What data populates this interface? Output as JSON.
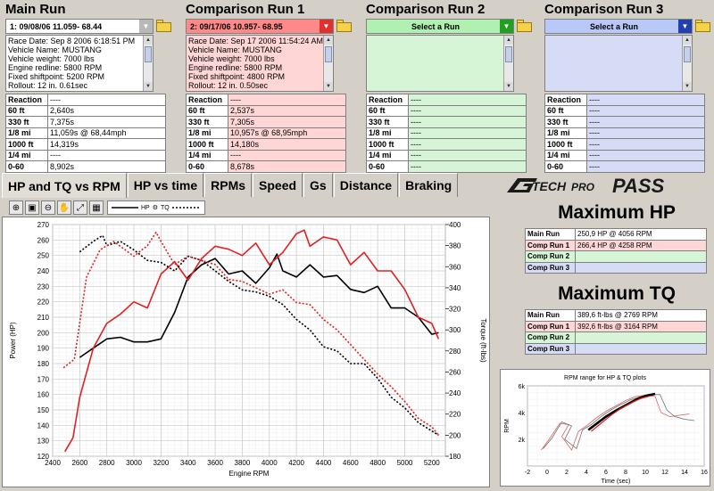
{
  "runs": [
    {
      "title": "Main Run",
      "selected": "1:   09/08/06 11.059- 68.44",
      "color": "#ffffff",
      "dd_color": "#b8b8b8",
      "header_color": "#ffffff",
      "info": [
        "Race Date: Sep 8 2006  6:18:51 PM",
        "Vehicle Name: MUSTANG",
        "Vehicle weight: 7000 lbs",
        "Engine redline: 5800 RPM",
        "Fixed shiftpoint: 5200 RPM",
        "Rollout: 12 in. 0.61sec"
      ],
      "stats": [
        [
          "Reaction",
          "----"
        ],
        [
          "60 ft",
          "2,640s"
        ],
        [
          "330 ft",
          "7,375s"
        ],
        [
          "1/8 mi",
          "11,059s @ 68,44mph"
        ],
        [
          "1000 ft",
          "14,319s"
        ],
        [
          "1/4 mi",
          "----"
        ],
        [
          "0-60",
          "8,902s"
        ]
      ]
    },
    {
      "title": "Comparison Run 1",
      "selected": "2:   09/17/06 10.957- 68.95",
      "color": "#ffd6d6",
      "dd_color": "#e03030",
      "header_color": "#ff8888",
      "info": [
        "Race Date: Sep 17 2006  11:54:24 AM",
        "Vehicle Name: MUSTANG",
        "Vehicle weight: 7000 lbs",
        "Engine redline: 5800 RPM",
        "Fixed shiftpoint: 4800 RPM",
        "Rollout: 12 in. 0.50sec"
      ],
      "stats": [
        [
          "Reaction",
          "----"
        ],
        [
          "60 ft",
          "2,537s"
        ],
        [
          "330 ft",
          "7,305s"
        ],
        [
          "1/8 mi",
          "10,957s @ 68,95mph"
        ],
        [
          "1000 ft",
          "14,180s"
        ],
        [
          "1/4 mi",
          "----"
        ],
        [
          "0-60",
          "8,678s"
        ]
      ]
    },
    {
      "title": "Comparison Run 2",
      "selected": "Select a Run",
      "color": "#d6f5d6",
      "dd_color": "#20a020",
      "header_color": "#b0f0b0",
      "info": [],
      "stats": [
        [
          "Reaction",
          "----"
        ],
        [
          "60 ft",
          "----"
        ],
        [
          "330 ft",
          "----"
        ],
        [
          "1/8 mi",
          "----"
        ],
        [
          "1000 ft",
          "----"
        ],
        [
          "1/4 mi",
          "----"
        ],
        [
          "0-60",
          "----"
        ]
      ]
    },
    {
      "title": "Comparison Run 3",
      "selected": "Select a Run",
      "color": "#d6dcf5",
      "dd_color": "#2040b0",
      "header_color": "#b8c8f8",
      "info": [],
      "stats": [
        [
          "Reaction",
          "----"
        ],
        [
          "60 ft",
          "----"
        ],
        [
          "330 ft",
          "----"
        ],
        [
          "1/8 mi",
          "----"
        ],
        [
          "1000 ft",
          "----"
        ],
        [
          "1/4 mi",
          "----"
        ],
        [
          "0-60",
          "----"
        ]
      ]
    }
  ],
  "tabs": [
    "HP and TQ vs RPM",
    "HP vs time",
    "RPMs",
    "Speed",
    "Gs",
    "Distance",
    "Braking"
  ],
  "logo": {
    "brand": "TECH",
    "sub": "PRO",
    "product": "PASS",
    "g": "G"
  },
  "legend": {
    "hp": "HP",
    "tq": "TQ"
  },
  "max_hp": {
    "title": "Maximum HP",
    "rows": [
      [
        "Main Run",
        "250,9 HP @ 4056 RPM"
      ],
      [
        "Comp Run 1",
        "266,4 HP @ 4258 RPM"
      ],
      [
        "Comp Run 2",
        ""
      ],
      [
        "Comp Run 3",
        ""
      ]
    ]
  },
  "max_tq": {
    "title": "Maximum TQ",
    "rows": [
      [
        "Main Run",
        "389,6 ft-lbs @ 2769 RPM"
      ],
      [
        "Comp Run 1",
        "392,6 ft-lbs @ 3164 RPM"
      ],
      [
        "Comp Run 2",
        ""
      ],
      [
        "Comp Run 3",
        ""
      ]
    ]
  },
  "row_colors": [
    "#ffffff",
    "#ffd6d6",
    "#d6f5d6",
    "#d6dcf5"
  ],
  "chart_data": {
    "type": "line",
    "xlabel": "Engine RPM",
    "ylabel": "Power (HP)",
    "y2label": "Torque (ft-lbs)",
    "xlim": [
      2400,
      5300
    ],
    "ylim": [
      120,
      270
    ],
    "y2lim": [
      180,
      400
    ],
    "xticks": [
      2400,
      2600,
      2800,
      3000,
      3200,
      3400,
      3600,
      3800,
      4000,
      4200,
      4400,
      4600,
      4800,
      5000,
      5200
    ],
    "yticks": [
      120,
      130,
      140,
      150,
      160,
      170,
      180,
      190,
      200,
      210,
      220,
      230,
      240,
      250,
      260,
      270
    ],
    "y2ticks": [
      180,
      200,
      220,
      240,
      260,
      280,
      300,
      320,
      340,
      360,
      380,
      400
    ],
    "grid": true,
    "series": [
      {
        "axis": "hp",
        "color": "#000000",
        "dash": false,
        "x": [
          2600,
          2700,
          2800,
          2900,
          3000,
          3100,
          3200,
          3300,
          3400,
          3500,
          3600,
          3700,
          3800,
          3900,
          4000,
          4056,
          4100,
          4200,
          4300,
          4400,
          4500,
          4600,
          4700,
          4800,
          4900,
          5000,
          5100,
          5200,
          5250
        ],
        "y": [
          184,
          190,
          196,
          197,
          194,
          194,
          196,
          213,
          236,
          244,
          248,
          238,
          240,
          232,
          242,
          250.9,
          240,
          236,
          244,
          236,
          237,
          228,
          226,
          230,
          216,
          216,
          210,
          199,
          200
        ]
      },
      {
        "axis": "hp",
        "color": "#e02020",
        "dash": false,
        "x": [
          2490,
          2550,
          2600,
          2700,
          2800,
          2900,
          3000,
          3100,
          3200,
          3300,
          3400,
          3500,
          3600,
          3700,
          3800,
          3900,
          4000,
          4100,
          4200,
          4258,
          4300,
          4400,
          4500,
          4600,
          4700,
          4800,
          4900,
          5000,
          5100,
          5200,
          5250
        ],
        "y": [
          123,
          132,
          158,
          190,
          206,
          212,
          220,
          216,
          238,
          246,
          234,
          248,
          256,
          254,
          250,
          258,
          244,
          252,
          264,
          266.4,
          256,
          262,
          260,
          244,
          252,
          240,
          240,
          228,
          210,
          206,
          196
        ]
      },
      {
        "axis": "tq",
        "color": "#000000",
        "dash": true,
        "x": [
          2600,
          2700,
          2769,
          2800,
          2900,
          3000,
          3100,
          3200,
          3300,
          3400,
          3500,
          3600,
          3700,
          3800,
          3900,
          4000,
          4100,
          4200,
          4300,
          4400,
          4500,
          4600,
          4700,
          4800,
          4900,
          5000,
          5100,
          5200,
          5250
        ],
        "y": [
          374,
          384,
          389.6,
          380,
          384,
          376,
          366,
          364,
          356,
          370,
          366,
          356,
          346,
          338,
          336,
          332,
          324,
          310,
          300,
          284,
          280,
          268,
          268,
          254,
          236,
          226,
          212,
          204,
          200
        ]
      },
      {
        "axis": "tq",
        "color": "#e02020",
        "dash": true,
        "x": [
          2480,
          2560,
          2650,
          2750,
          2850,
          3000,
          3100,
          3164,
          3200,
          3300,
          3400,
          3500,
          3600,
          3700,
          3800,
          3900,
          4000,
          4100,
          4200,
          4300,
          4400,
          4500,
          4600,
          4700,
          4800,
          4900,
          5000,
          5100,
          5200,
          5250
        ],
        "y": [
          264,
          272,
          350,
          376,
          384,
          370,
          380,
          392.6,
          384,
          362,
          370,
          366,
          362,
          348,
          346,
          340,
          334,
          338,
          326,
          324,
          310,
          300,
          286,
          272,
          258,
          246,
          232,
          216,
          208,
          200
        ]
      }
    ]
  },
  "mini_chart": {
    "title": "RPM range for HP & TQ plots",
    "xlabel": "Time (sec)",
    "ylabel": "RPM",
    "xticks": [
      -2,
      0,
      2,
      4,
      6,
      8,
      10,
      12,
      14,
      16
    ],
    "yticks": [
      "2k",
      "4k",
      "6k"
    ],
    "xlim": [
      -2,
      16
    ],
    "ylim": [
      0,
      6000
    ]
  }
}
